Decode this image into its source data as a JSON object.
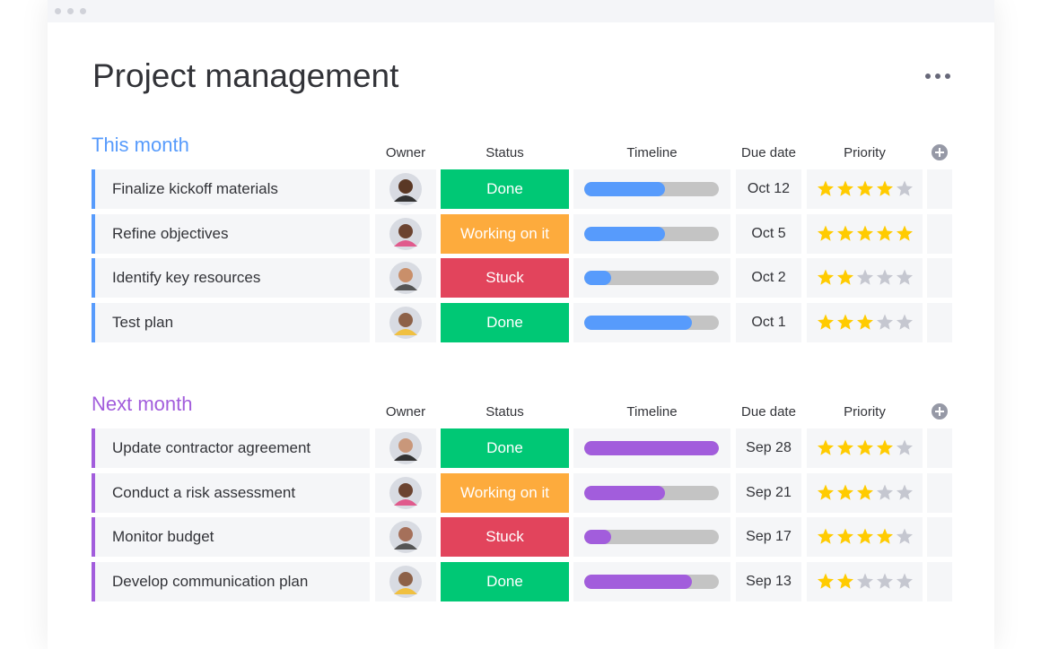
{
  "header": {
    "title": "Project management"
  },
  "groups": [
    {
      "name": "This month",
      "color": "#579bfc",
      "columns": [
        "Owner",
        "Status",
        "Timeline",
        "Due date",
        "Priority"
      ],
      "rows": [
        {
          "task": "Finalize kickoff materials",
          "status": "Done",
          "status_color": "#00c875",
          "timeline": 0.6,
          "due": "Oct 12",
          "priority": 4
        },
        {
          "task": "Refine objectives",
          "status": "Working on it",
          "status_color": "#fdab3d",
          "timeline": 0.6,
          "due": "Oct 5",
          "priority": 5
        },
        {
          "task": "Identify key resources",
          "status": "Stuck",
          "status_color": "#e2445c",
          "timeline": 0.2,
          "due": "Oct 2",
          "priority": 2
        },
        {
          "task": "Test plan",
          "status": "Done",
          "status_color": "#00c875",
          "timeline": 0.8,
          "due": "Oct 1",
          "priority": 3
        }
      ]
    },
    {
      "name": "Next month",
      "color": "#a25ddc",
      "columns": [
        "Owner",
        "Status",
        "Timeline",
        "Due date",
        "Priority"
      ],
      "rows": [
        {
          "task": "Update contractor agreement",
          "status": "Done",
          "status_color": "#00c875",
          "timeline": 1.0,
          "due": "Sep 28",
          "priority": 4
        },
        {
          "task": "Conduct a risk assessment",
          "status": "Working on it",
          "status_color": "#fdab3d",
          "timeline": 0.6,
          "due": "Sep 21",
          "priority": 3
        },
        {
          "task": "Monitor budget",
          "status": "Stuck",
          "status_color": "#e2445c",
          "timeline": 0.2,
          "due": "Sep 17",
          "priority": 4
        },
        {
          "task": "Develop communication plan",
          "status": "Done",
          "status_color": "#00c875",
          "timeline": 0.8,
          "due": "Sep 13",
          "priority": 2
        }
      ]
    }
  ]
}
